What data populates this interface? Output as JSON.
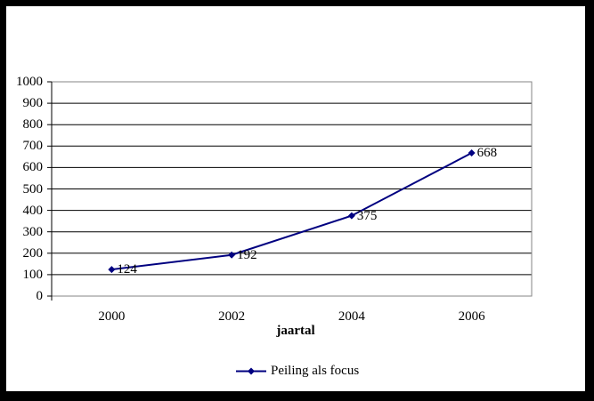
{
  "chart_data": {
    "type": "line",
    "title": "",
    "xlabel": "jaartal",
    "ylabel": "",
    "categories": [
      "2000",
      "2002",
      "2004",
      "2006"
    ],
    "series": [
      {
        "name": "Peiling als focus",
        "values": [
          124,
          192,
          375,
          668
        ],
        "point_labels": [
          "124",
          "192",
          "375",
          "668"
        ],
        "color": "#000080",
        "marker": "diamond"
      }
    ],
    "ylim": [
      0,
      1000
    ],
    "ytick_step": 100,
    "yticks": [
      "0",
      "100",
      "200",
      "300",
      "400",
      "500",
      "600",
      "700",
      "800",
      "900",
      "1000"
    ],
    "grid": true,
    "legend_position": "bottom-center",
    "colors": {
      "series_line": "#000080",
      "gridline": "#000000",
      "plot_border": "#848484",
      "axis_line": "#000000",
      "text": "#000000",
      "frame": "#000000",
      "background": "#ffffff"
    }
  }
}
